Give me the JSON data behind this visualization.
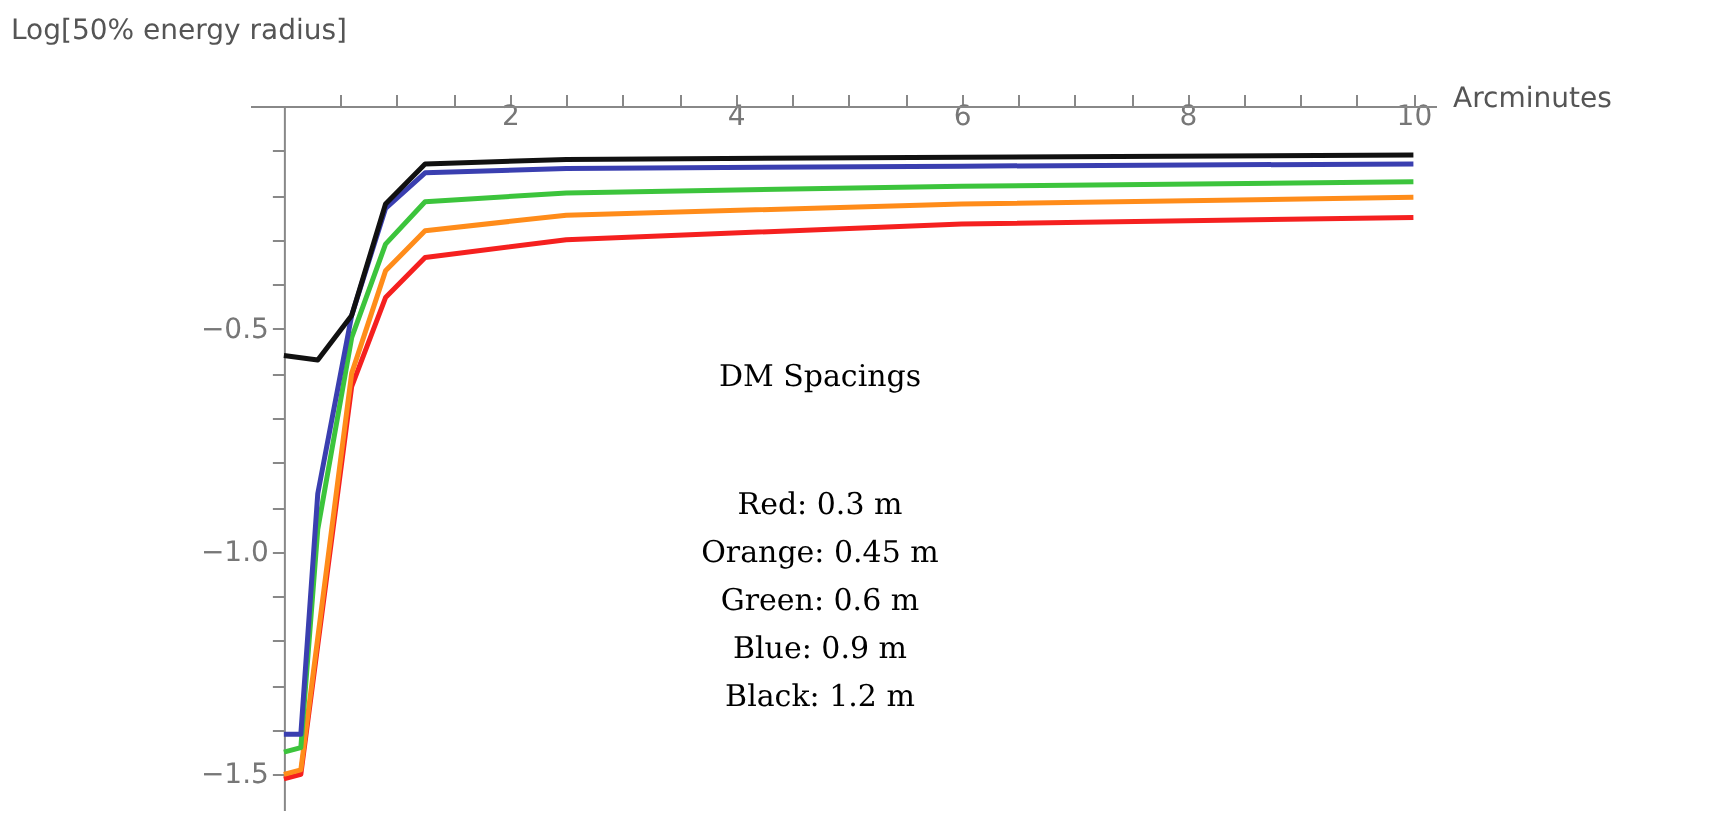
{
  "chart_data": {
    "type": "line",
    "xlabel": "Arcminutes",
    "ylabel": "Log[50%  energy radius]",
    "xlim": [
      -0.3,
      10.2
    ],
    "ylim": [
      -1.58,
      0
    ],
    "xticks": [
      {
        "value": 0.5,
        "label": null
      },
      {
        "value": 1,
        "label": null
      },
      {
        "value": 1.5,
        "label": null
      },
      2,
      {
        "value": 2.5,
        "label": null
      },
      {
        "value": 3,
        "label": null
      },
      {
        "value": 3.5,
        "label": null
      },
      4,
      {
        "value": 4.5,
        "label": null
      },
      {
        "value": 5,
        "label": null
      },
      {
        "value": 5.5,
        "label": null
      },
      6,
      {
        "value": 6.5,
        "label": null
      },
      {
        "value": 7,
        "label": null
      },
      {
        "value": 7.5,
        "label": null
      },
      8,
      {
        "value": 8.5,
        "label": null
      },
      {
        "value": 9,
        "label": null
      },
      {
        "value": 9.5,
        "label": null
      },
      10
    ],
    "yticks": [
      {
        "value": -0.1,
        "label": null
      },
      {
        "value": -0.2,
        "label": null
      },
      {
        "value": -0.3,
        "label": null
      },
      {
        "value": -0.4,
        "label": null
      },
      {
        "value": -0.5,
        "label": "−0.5"
      },
      {
        "value": -0.6,
        "label": null
      },
      {
        "value": -0.7,
        "label": null
      },
      {
        "value": -0.8,
        "label": null
      },
      {
        "value": -0.9,
        "label": null
      },
      {
        "value": -1.0,
        "label": "−1.0"
      },
      {
        "value": -1.1,
        "label": null
      },
      {
        "value": -1.2,
        "label": null
      },
      {
        "value": -1.3,
        "label": null
      },
      {
        "value": -1.4,
        "label": null
      },
      {
        "value": -1.5,
        "label": "−1.5"
      }
    ],
    "grid": false,
    "legend": false,
    "marker": "none",
    "line_style": "solid",
    "series": [
      {
        "color": "#f5201f",
        "x": [
          0,
          0.15,
          0.6,
          0.9,
          1.25,
          2.5,
          6,
          10
        ],
        "values": [
          -1.51,
          -1.5,
          -0.63,
          -0.43,
          -0.34,
          -0.3,
          -0.265,
          -0.25
        ]
      },
      {
        "color": "#ff8c1a",
        "x": [
          0,
          0.15,
          0.6,
          0.9,
          1.25,
          2.5,
          6,
          10
        ],
        "values": [
          -1.5,
          -1.49,
          -0.6,
          -0.37,
          -0.28,
          -0.245,
          -0.22,
          -0.205
        ]
      },
      {
        "color": "#3cc43c",
        "x": [
          0,
          0.15,
          0.3,
          0.6,
          0.9,
          1.25,
          2.5,
          6,
          10
        ],
        "values": [
          -1.45,
          -1.44,
          -0.95,
          -0.52,
          -0.31,
          -0.215,
          -0.195,
          -0.18,
          -0.17
        ]
      },
      {
        "color": "#3a3fb0",
        "x": [
          0,
          0.15,
          0.3,
          0.6,
          0.9,
          1.25,
          2.5,
          6,
          10
        ],
        "values": [
          -1.41,
          -1.41,
          -0.87,
          -0.47,
          -0.23,
          -0.15,
          -0.14,
          -0.135,
          -0.13
        ]
      },
      {
        "color": "#111111",
        "x": [
          0,
          0.3,
          0.6,
          0.9,
          1.25,
          2.5,
          6,
          10
        ],
        "values": [
          -0.56,
          -0.57,
          -0.47,
          -0.22,
          -0.13,
          -0.12,
          -0.115,
          -0.11
        ]
      }
    ],
    "annotations": [
      "DM Spacings",
      "Red:     0.3 m",
      "Orange:      0.45 m",
      "Green:  0.6 m",
      "Blue:  0.9 m",
      "Black:  1.2 m"
    ]
  }
}
